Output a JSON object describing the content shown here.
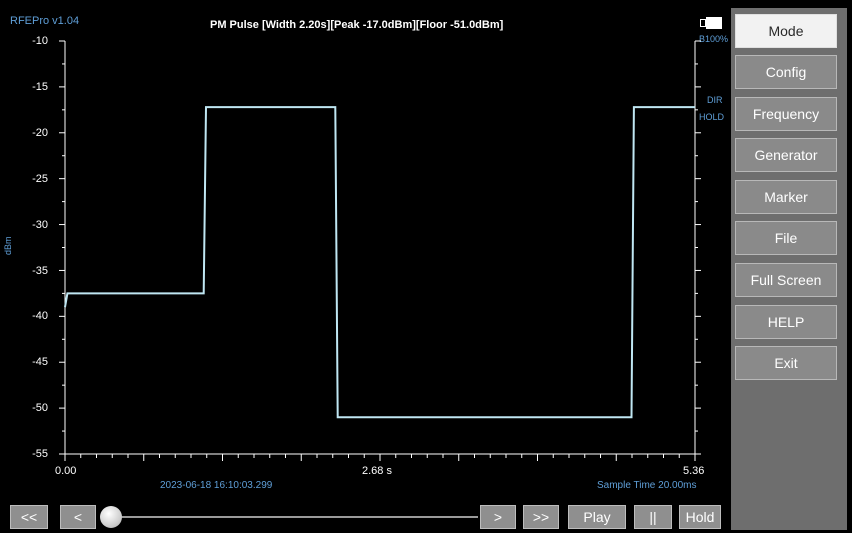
{
  "app": {
    "title": "RFEPro v1.04"
  },
  "header": {
    "measurement": "PM Pulse [Width 2.20s][Peak -17.0dBm][Floor -51.0dBm]"
  },
  "battery": {
    "label": "B100%"
  },
  "status": {
    "dir": "DIR",
    "hold": "HOLD"
  },
  "axis": {
    "y_unit": "dBm",
    "y_ticks": [
      "-10",
      "-15",
      "-20",
      "-25",
      "-30",
      "-35",
      "-40",
      "-45",
      "-50",
      "-55"
    ],
    "x_ticks": [
      "0.00",
      "2.68 s",
      "5.36"
    ]
  },
  "footer": {
    "timestamp": "2023-06-18 16:10:03.299",
    "sample_time": "Sample Time 20.00ms"
  },
  "menu": {
    "items": [
      {
        "label": "Mode",
        "active": true
      },
      {
        "label": "Config"
      },
      {
        "label": "Frequency"
      },
      {
        "label": "Generator"
      },
      {
        "label": "Marker"
      },
      {
        "label": "File"
      },
      {
        "label": "Full Screen"
      },
      {
        "label": "HELP"
      },
      {
        "label": "Exit"
      }
    ]
  },
  "controls": {
    "rewind": "<<",
    "prev": "<",
    "next": ">",
    "forward": ">>",
    "play": "Play",
    "pause": "||",
    "hold": "Hold"
  },
  "slider": {
    "position": 0.0
  },
  "colors": {
    "trace": "#bfe6f2",
    "accent": "#5f9fd8",
    "menu_bg": "#6e6e6e",
    "button": "#8a8a8a"
  },
  "chart_data": {
    "type": "line",
    "ylabel": "dBm",
    "ylim": [
      -55,
      -10
    ],
    "xlim": [
      0,
      5.36
    ],
    "x": [
      0.0,
      0.02,
      0.3,
      0.6,
      1.0,
      1.18,
      1.2,
      1.4,
      1.8,
      2.1,
      2.3,
      2.32,
      2.5,
      3.5,
      4.8,
      4.82,
      4.84,
      5.0,
      5.36
    ],
    "y": [
      -39,
      -37.5,
      -37.5,
      -37.5,
      -37.5,
      -37.5,
      -17.2,
      -17.2,
      -17.2,
      -17.2,
      -17.2,
      -51.0,
      -51.0,
      -51.0,
      -51.0,
      -51.0,
      -17.2,
      -17.2,
      -17.2
    ]
  }
}
